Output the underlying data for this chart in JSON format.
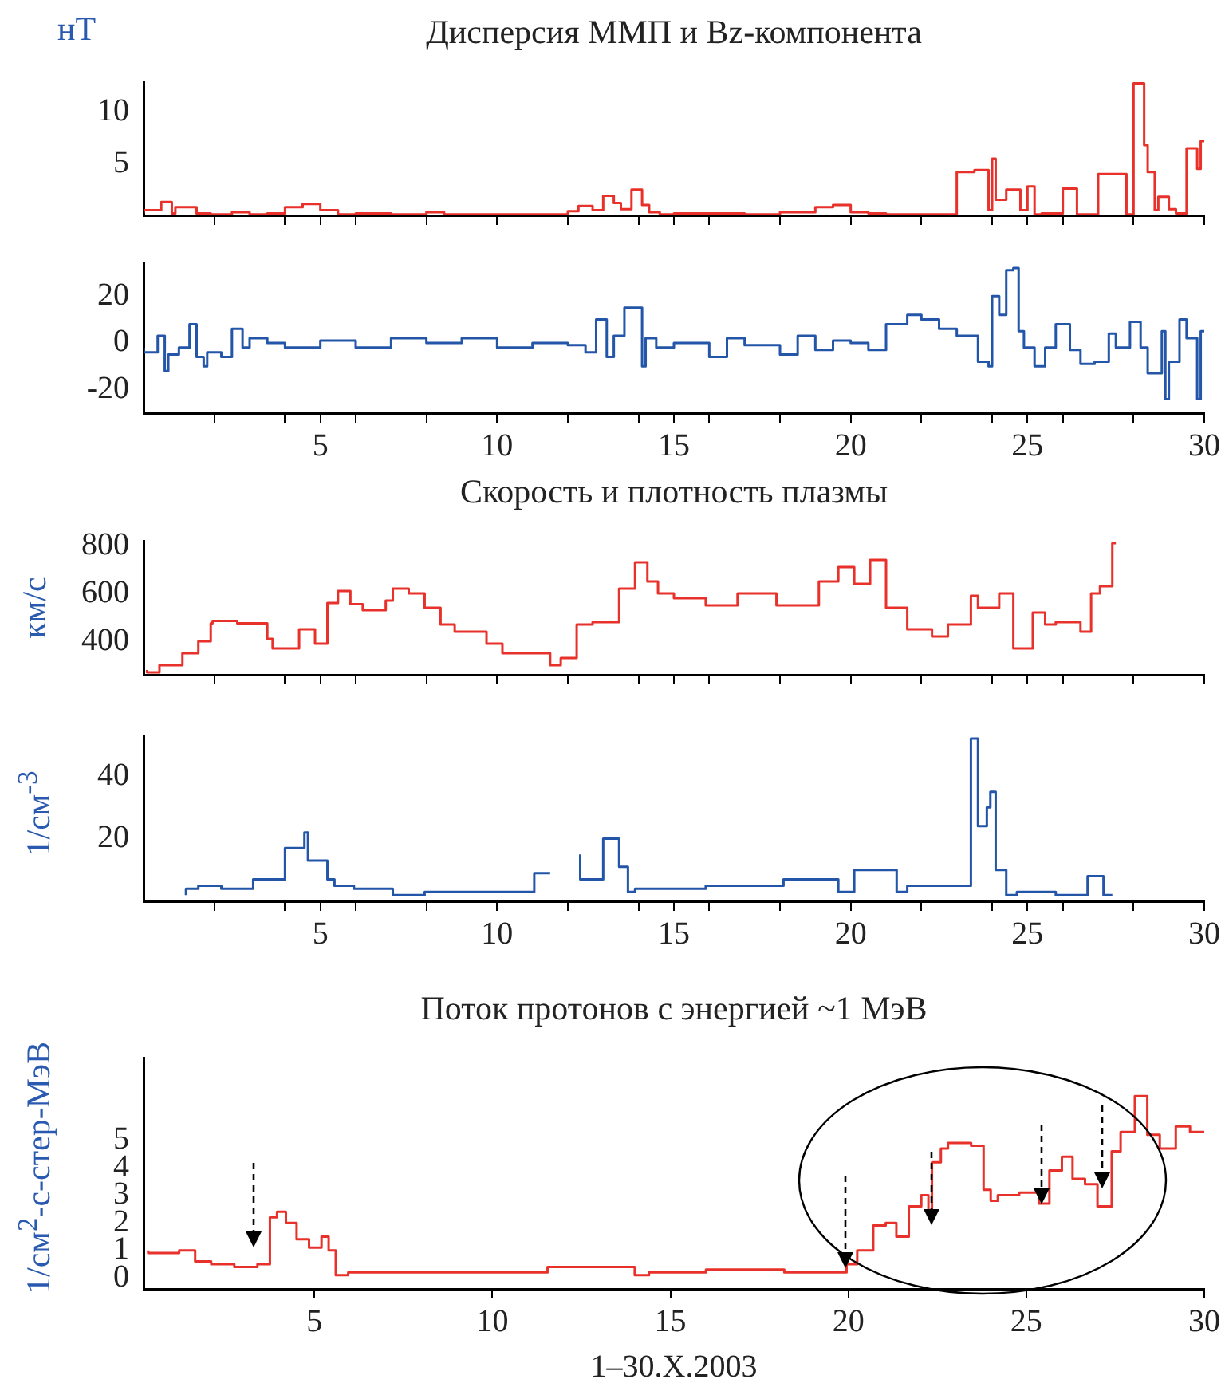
{
  "chart_data": [
    {
      "type": "step",
      "title": "Дисперсия ММП и Bz-компонента",
      "ylabel": "нТ",
      "xlim": [
        0,
        30
      ],
      "ylim": [
        0,
        13
      ],
      "yticks": [
        5,
        10
      ],
      "tick_labels": "y",
      "xticks": [
        {
          "value": 2,
          "label": null
        },
        {
          "value": 4,
          "label": null
        },
        5,
        {
          "value": 6,
          "label": null
        },
        {
          "value": 8,
          "label": null
        },
        10,
        {
          "value": 12,
          "label": null
        },
        {
          "value": 14,
          "label": null
        },
        15,
        {
          "value": 16,
          "label": null
        },
        {
          "value": 18,
          "label": null
        },
        20,
        {
          "value": 22,
          "label": null
        },
        {
          "value": 24,
          "label": null
        },
        25,
        {
          "value": 26,
          "label": null
        },
        {
          "value": 28,
          "label": null
        },
        30
      ],
      "x": [
        0,
        0.5,
        0.8,
        0.9,
        1.5,
        1.9,
        2.5,
        3,
        3.5,
        4,
        4.5,
        5,
        5.5,
        6,
        7,
        8,
        8.5,
        9,
        10,
        11,
        12,
        12.3,
        12.7,
        13,
        13.3,
        13.5,
        13.8,
        14.1,
        14.3,
        14.6,
        15,
        16,
        17,
        18,
        19,
        19.5,
        20,
        20.5,
        21,
        22,
        23,
        23.5,
        23.9,
        24,
        24.1,
        24.4,
        24.8,
        25,
        25.2,
        25.4,
        26,
        26.4,
        26.6,
        27,
        27.8,
        28,
        28.3,
        28.4,
        28.6,
        28.7,
        29,
        29.2,
        29.5,
        29.8,
        29.9,
        30
      ],
      "series": [
        {
          "color": "#e8312a",
          "values": [
            0.2,
            0.5,
            1.3,
            0.2,
            0.8,
            0.2,
            0.1,
            0.3,
            0.1,
            0.2,
            0.8,
            1.1,
            0.5,
            0.1,
            0.2,
            0.1,
            0.3,
            0.1,
            0.1,
            0.1,
            0.1,
            0.4,
            0.9,
            0.5,
            1.9,
            1.2,
            0.6,
            2.5,
            1,
            0.3,
            0.1,
            0.2,
            0.2,
            0.1,
            0.3,
            0.8,
            1,
            0.3,
            0.2,
            0.1,
            0.1,
            4.2,
            4.4,
            0.5,
            5.5,
            1.5,
            2.5,
            0.5,
            2.8,
            0.1,
            0.2,
            2.6,
            0.1,
            0.1,
            4,
            0.1,
            12.8,
            6.8,
            4.2,
            0.5,
            1.8,
            0.6,
            0.2,
            6.5,
            4.5,
            7.2
          ]
        }
      ]
    },
    {
      "type": "step",
      "xlim": [
        0,
        30
      ],
      "ylim": [
        -30,
        34
      ],
      "yticks": [
        -20,
        0,
        20
      ],
      "xticks": [
        {
          "value": 2,
          "label": null
        },
        {
          "value": 4,
          "label": null
        },
        5,
        {
          "value": 6,
          "label": null
        },
        {
          "value": 8,
          "label": null
        },
        10,
        {
          "value": 12,
          "label": null
        },
        {
          "value": 14,
          "label": null
        },
        15,
        {
          "value": 16,
          "label": null
        },
        {
          "value": 18,
          "label": null
        },
        20,
        {
          "value": 22,
          "label": null
        },
        {
          "value": 24,
          "label": null
        },
        25,
        {
          "value": 26,
          "label": null
        },
        {
          "value": 28,
          "label": null
        },
        30
      ],
      "x": [
        0,
        0.4,
        0.6,
        0.7,
        1,
        1.3,
        1.5,
        1.7,
        1.8,
        2.2,
        2.5,
        2.8,
        3,
        3.5,
        4,
        5,
        6,
        7,
        8,
        9,
        10,
        11,
        12,
        12.5,
        12.8,
        13.1,
        13.3,
        13.6,
        14.1,
        14.2,
        14.5,
        15,
        16,
        16.5,
        17,
        18,
        18.5,
        19,
        19.5,
        20,
        20.5,
        21,
        21.6,
        22,
        22.5,
        23,
        23.6,
        23.9,
        24,
        24.2,
        24.4,
        24.6,
        24.75,
        24.9,
        25.2,
        25.5,
        25.8,
        26.2,
        26.5,
        26.9,
        27.3,
        27.5,
        27.9,
        28.2,
        28.4,
        28.8,
        28.9,
        29,
        29.3,
        29.5,
        29.8,
        29.9,
        30
      ],
      "series": [
        {
          "color": "#2355a8",
          "values": [
            -2,
            -4,
            3,
            -12,
            -5,
            -2,
            8,
            -6,
            -10,
            -4,
            -6,
            6,
            -2,
            2,
            0,
            -2,
            1,
            -2,
            2,
            0,
            2,
            -2,
            0,
            -1,
            -4,
            10,
            -6,
            3,
            15,
            -10,
            2,
            -2,
            0,
            -6,
            2,
            -1,
            -5,
            3,
            -3,
            1,
            0,
            -3,
            8,
            12,
            10,
            6,
            3,
            -8,
            -10,
            20,
            12,
            31,
            32,
            5,
            -2,
            -10,
            -2,
            8,
            -3,
            -9,
            -8,
            4,
            -2,
            9,
            -2,
            -13,
            5,
            -24,
            -8,
            10,
            2,
            -24,
            5
          ]
        }
      ]
    },
    {
      "type": "step",
      "title": "Скорость и плотность плазмы",
      "ylabel": "км/с",
      "xlim": [
        0,
        30
      ],
      "ylim": [
        260,
        820
      ],
      "yticks": [
        400,
        600,
        800
      ],
      "tick_labels": "y",
      "xticks": [
        {
          "value": 2,
          "label": null
        },
        {
          "value": 4,
          "label": null
        },
        5,
        {
          "value": 6,
          "label": null
        },
        {
          "value": 8,
          "label": null
        },
        10,
        {
          "value": 12,
          "label": null
        },
        {
          "value": 14,
          "label": null
        },
        15,
        {
          "value": 16,
          "label": null
        },
        {
          "value": 18,
          "label": null
        },
        20,
        {
          "value": 22,
          "label": null
        },
        {
          "value": 24,
          "label": null
        },
        25,
        {
          "value": 26,
          "label": null
        },
        {
          "value": 28,
          "label": null
        },
        30
      ],
      "x": [
        0.1,
        0.45,
        1.1,
        1.55,
        1.9,
        1.95,
        2.65,
        3.5,
        3.65,
        4.4,
        4.85,
        5.2,
        5.5,
        5.85,
        6.2,
        6.85,
        7.05,
        7.5,
        7.95,
        8.4,
        8.8,
        9.7,
        10.15,
        11.5,
        11.8,
        12.25,
        12.7,
        13.45,
        13.9,
        14.25,
        14.55,
        15,
        15.9,
        16.8,
        17.9,
        19.1,
        19.65,
        20.1,
        20.55,
        21,
        21.6,
        22.3,
        22.75,
        23.4,
        23.6,
        24.2,
        24.6,
        25.15,
        25.5,
        25.8,
        26.5,
        26.8,
        27.05,
        27.4,
        27.5
      ],
      "series": [
        {
          "color": "#e8312a",
          "values": [
            280,
            270,
            300,
            350,
            400,
            475,
            485,
            475,
            410,
            370,
            450,
            390,
            560,
            610,
            555,
            530,
            570,
            620,
            600,
            540,
            470,
            440,
            390,
            350,
            300,
            330,
            470,
            480,
            620,
            730,
            650,
            600,
            580,
            550,
            600,
            550,
            650,
            710,
            640,
            740,
            540,
            450,
            420,
            470,
            590,
            540,
            600,
            370,
            520,
            470,
            480,
            440,
            600,
            630,
            810
          ]
        }
      ]
    },
    {
      "type": "step",
      "ylabel": "1/см$^{-3}$",
      "xlim": [
        0,
        30
      ],
      "ylim": [
        0,
        53
      ],
      "yticks": [
        20,
        40
      ],
      "xticks": [
        {
          "value": 2,
          "label": null
        },
        {
          "value": 4,
          "label": null
        },
        5,
        {
          "value": 6,
          "label": null
        },
        {
          "value": 8,
          "label": null
        },
        10,
        {
          "value": 12,
          "label": null
        },
        {
          "value": 14,
          "label": null
        },
        15,
        {
          "value": 16,
          "label": null
        },
        {
          "value": 18,
          "label": null
        },
        20,
        {
          "value": 22,
          "label": null
        },
        {
          "value": 24,
          "label": null
        },
        25,
        {
          "value": 26,
          "label": null
        },
        {
          "value": 28,
          "label": null
        },
        30
      ],
      "x": [
        1.2,
        1.55,
        2.2,
        3.1,
        4,
        4.55,
        4.65,
        4.85,
        5.2,
        5.4,
        5.95,
        7.05,
        7.95,
        11.05,
        11.5,
        12,
        12.35,
        13,
        13.45,
        13.7,
        13.9,
        15.9,
        18.1,
        19.65,
        20.1,
        21.3,
        21.6,
        23.4,
        23.6,
        23.85,
        23.95,
        24.1,
        24.4,
        24.7,
        25.8,
        26.7,
        27.15,
        27.4
      ],
      "series": [
        {
          "color": "#2355a8",
          "values": [
            2,
            4,
            5,
            4,
            7,
            17,
            22,
            13,
            13,
            7,
            5,
            4,
            2,
            3,
            9,
            null,
            15,
            7,
            20,
            11,
            3,
            4,
            5,
            7,
            3,
            10,
            3,
            5,
            52,
            24,
            30,
            35,
            10,
            2,
            3,
            2,
            8,
            2
          ]
        }
      ]
    },
    {
      "type": "step",
      "title": "Поток протонов с энергией ~1 МэВ",
      "ylabel": "1/см$^{2}$-с-стер-МэВ",
      "xlabel": "1–30.X.2003",
      "xlim": [
        0.2,
        30
      ],
      "ylim": [
        -0.4,
        8
      ],
      "xticks": [
        5,
        10,
        15,
        20,
        25,
        30
      ],
      "yticks": [
        0,
        1,
        2,
        3,
        4,
        5
      ],
      "x": [
        0.33,
        1.2,
        1.65,
        2.1,
        2.75,
        3.4,
        3.75,
        3.95,
        4.2,
        4.5,
        4.85,
        5.2,
        5.4,
        5.6,
        5.95,
        7.15,
        9.35,
        11.55,
        13.1,
        14,
        14.4,
        16,
        18.2,
        19.95,
        20.25,
        20.7,
        21.05,
        21.35,
        21.7,
        22.05,
        22.25,
        22.35,
        22.6,
        22.8,
        23.45,
        23.8,
        24,
        24.2,
        24.8,
        25.35,
        25.65,
        26,
        26.3,
        26.65,
        27,
        27.4,
        27.65,
        28.05,
        28.4,
        28.75,
        29.2,
        29.6,
        30
      ],
      "series": [
        {
          "color": "#e8312a",
          "values": [
            1,
            0.9,
            1,
            0.6,
            0.5,
            0.4,
            0.5,
            2.2,
            2.4,
            2,
            1.4,
            1.1,
            1.5,
            1,
            0.1,
            0.2,
            0.2,
            0.2,
            0.4,
            0.4,
            0.1,
            0.2,
            0.3,
            0.2,
            0.5,
            1,
            1.9,
            2,
            1.5,
            2.6,
            3,
            2.3,
            4.2,
            4.7,
            4.9,
            4.8,
            3.2,
            2.8,
            3,
            3.1,
            2.7,
            3.9,
            4.4,
            3.6,
            3.4,
            2.6,
            4.6,
            5.3,
            6.6,
            5.2,
            4.7,
            5.5,
            5.3
          ]
        }
      ]
    }
  ]
}
